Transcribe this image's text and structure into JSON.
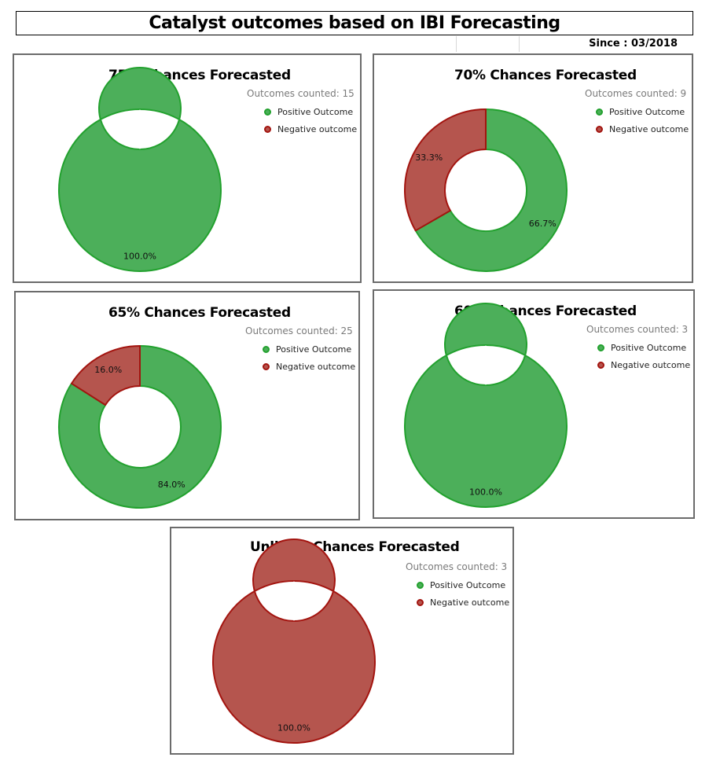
{
  "header": {
    "title": "Catalyst outcomes based on IBI Forecasting",
    "since": "Since : 03/2018"
  },
  "legend": {
    "positive": "Positive Outcome",
    "negative": "Negative outcome"
  },
  "colors": {
    "positive_fill": "#4caf5a",
    "positive_stroke": "#22a12e",
    "negative_fill": "#b5554e",
    "negative_stroke": "#a3140f"
  },
  "chart_data": [
    {
      "type": "donut",
      "title": "75% Chances Forecasted",
      "counted": "Outcomes counted: 15",
      "series": [
        {
          "name": "Positive Outcome",
          "value": 100.0,
          "label": "100.0%"
        },
        {
          "name": "Negative outcome",
          "value": 0,
          "label": ""
        }
      ]
    },
    {
      "type": "donut",
      "title": "70% Chances Forecasted",
      "counted": "Outcomes counted: 9",
      "series": [
        {
          "name": "Positive Outcome",
          "value": 66.7,
          "label": "66.7%"
        },
        {
          "name": "Negative outcome",
          "value": 33.3,
          "label": "33.3%"
        }
      ]
    },
    {
      "type": "donut",
      "title": "65% Chances Forecasted",
      "counted": "Outcomes counted: 25",
      "series": [
        {
          "name": "Positive Outcome",
          "value": 84.0,
          "label": "84.0%"
        },
        {
          "name": "Negative outcome",
          "value": 16.0,
          "label": "16.0%"
        }
      ]
    },
    {
      "type": "donut",
      "title": "60% Chances Forecasted",
      "counted": "Outcomes counted: 3",
      "series": [
        {
          "name": "Positive Outcome",
          "value": 100.0,
          "label": "100.0%"
        },
        {
          "name": "Negative outcome",
          "value": 0,
          "label": ""
        }
      ]
    },
    {
      "type": "donut",
      "title": "Unlikely Chances Forecasted",
      "counted": "Outcomes counted: 3",
      "series": [
        {
          "name": "Positive Outcome",
          "value": 0,
          "label": ""
        },
        {
          "name": "Negative outcome",
          "value": 100.0,
          "label": "100.0%"
        }
      ]
    }
  ]
}
